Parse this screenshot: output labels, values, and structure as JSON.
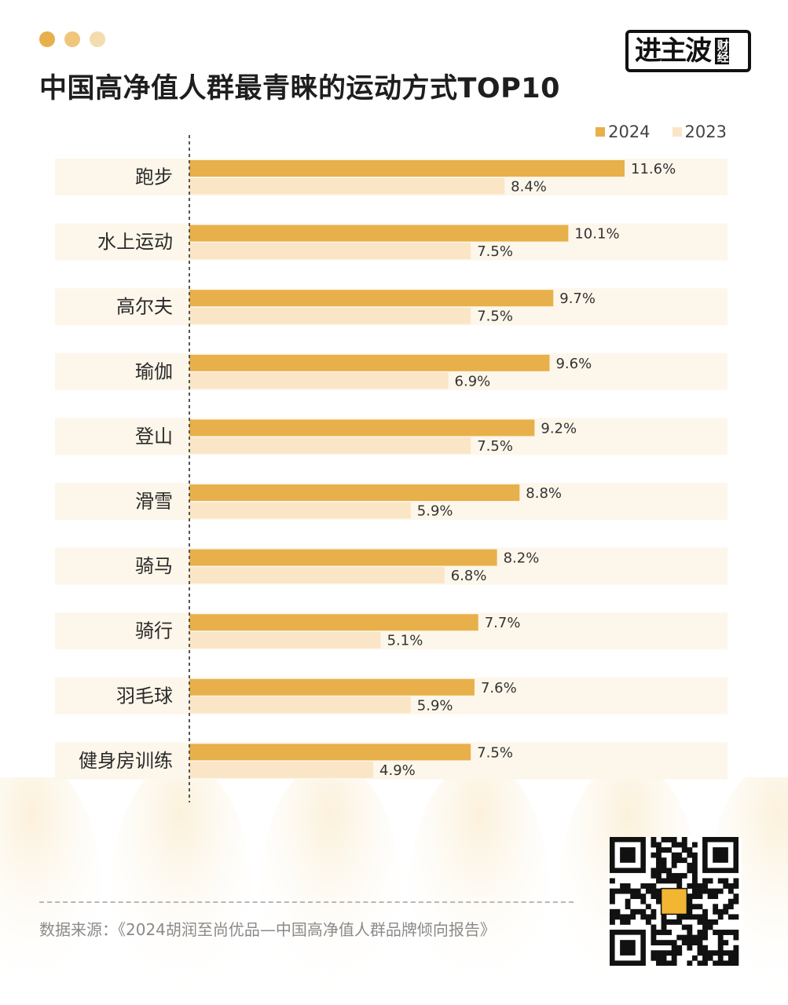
{
  "header": {
    "title": "中国高净值人群最青睐的运动方式TOP10",
    "dot_colors": [
      "#e8b04a",
      "#efc67a",
      "#f4dcae"
    ]
  },
  "logo": {
    "main": "进主波",
    "sub": "财经"
  },
  "footer": {
    "source": "数据来源：《2024胡润至尚优品—中国高净值人群品牌倾向报告》"
  },
  "colors": {
    "bar_2024": "#e8b04a",
    "bar_2023": "#fae6c6",
    "row_bg": "#fdf6ea",
    "axis": "#555555"
  },
  "chart_data": {
    "type": "bar",
    "orientation": "horizontal",
    "categories": [
      "跑步",
      "水上运动",
      "高尔夫",
      "瑜伽",
      "登山",
      "滑雪",
      "骑马",
      "骑行",
      "羽毛球",
      "健身房训练"
    ],
    "series": [
      {
        "name": "2024",
        "values": [
          11.6,
          10.1,
          9.7,
          9.6,
          9.2,
          8.8,
          8.2,
          7.7,
          7.6,
          7.5
        ]
      },
      {
        "name": "2023",
        "values": [
          8.4,
          7.5,
          7.5,
          6.9,
          7.5,
          5.9,
          6.8,
          5.1,
          5.9,
          4.9
        ]
      }
    ],
    "value_suffix": "%",
    "xlim": [
      0,
      11.6
    ],
    "legend_position": "top-right",
    "grid": false
  }
}
